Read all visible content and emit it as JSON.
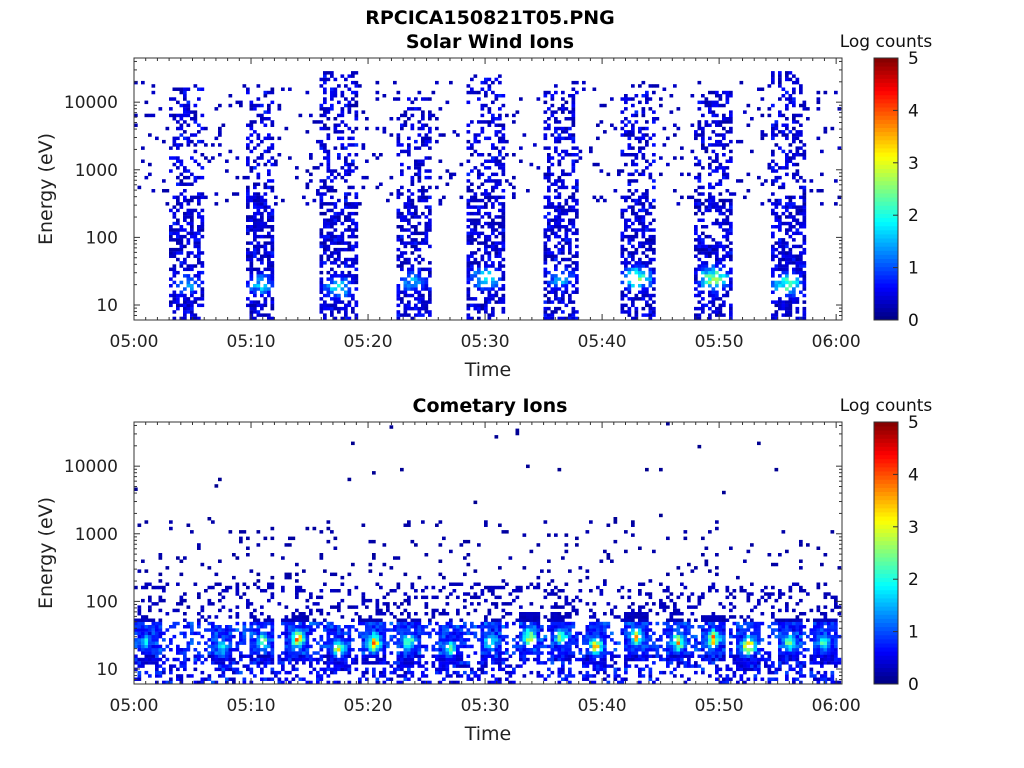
{
  "figure": {
    "file_title": "RPCICA150821T05.PNG"
  },
  "chart_data": [
    {
      "type": "heatmap",
      "title": "Solar Wind Ions",
      "xlabel": "Time",
      "ylabel": "Energy (eV)",
      "x_ticks": [
        "05:00",
        "05:10",
        "05:20",
        "05:30",
        "05:40",
        "05:50",
        "06:00"
      ],
      "x_range_minutes": [
        0,
        60.5
      ],
      "y_scale": "log",
      "y_ticks": [
        10,
        100,
        1000,
        10000
      ],
      "y_tick_labels": [
        "10",
        "100",
        "1000",
        "10000"
      ],
      "y_range": [
        6,
        45000
      ],
      "colorbar": {
        "label": "Log counts",
        "range": [
          0,
          5
        ],
        "ticks": [
          "0",
          "1",
          "2",
          "3",
          "4",
          "5"
        ],
        "colormap": "jet"
      },
      "bursts": [
        {
          "center_min": 4.5,
          "width_min": 2.8,
          "peak_log": 1.6,
          "peak_energy_ev": 20,
          "top_energy_ev": 18000
        },
        {
          "center_min": 10.8,
          "width_min": 2.6,
          "peak_log": 1.8,
          "peak_energy_ev": 20,
          "top_energy_ev": 16000
        },
        {
          "center_min": 17.5,
          "width_min": 3.0,
          "peak_log": 2.0,
          "peak_energy_ev": 18,
          "top_energy_ev": 30000
        },
        {
          "center_min": 23.8,
          "width_min": 3.0,
          "peak_log": 1.5,
          "peak_energy_ev": 22,
          "top_energy_ev": 12000
        },
        {
          "center_min": 30.0,
          "width_min": 3.2,
          "peak_log": 2.0,
          "peak_energy_ev": 25,
          "top_energy_ev": 25000
        },
        {
          "center_min": 36.5,
          "width_min": 3.0,
          "peak_log": 1.6,
          "peak_energy_ev": 25,
          "top_energy_ev": 14000
        },
        {
          "center_min": 43.0,
          "width_min": 3.0,
          "peak_log": 2.6,
          "peak_energy_ev": 25,
          "top_energy_ev": 15000
        },
        {
          "center_min": 49.5,
          "width_min": 3.0,
          "peak_log": 2.8,
          "peak_energy_ev": 25,
          "top_energy_ev": 14000
        },
        {
          "center_min": 55.8,
          "width_min": 3.0,
          "peak_log": 2.4,
          "peak_energy_ev": 20,
          "top_energy_ev": 30000
        }
      ]
    },
    {
      "type": "heatmap",
      "title": "Cometary Ions",
      "xlabel": "Time",
      "ylabel": "Energy (eV)",
      "x_ticks": [
        "05:00",
        "05:10",
        "05:20",
        "05:30",
        "05:40",
        "05:50",
        "06:00"
      ],
      "x_range_minutes": [
        0,
        60.5
      ],
      "y_scale": "log",
      "y_ticks": [
        10,
        100,
        1000,
        10000
      ],
      "y_tick_labels": [
        "10",
        "100",
        "1000",
        "10000"
      ],
      "y_range": [
        6,
        45000
      ],
      "colorbar": {
        "label": "Log counts",
        "range": [
          0,
          5
        ],
        "ticks": [
          "0",
          "1",
          "2",
          "3",
          "4",
          "5"
        ],
        "colormap": "jet"
      },
      "hotspots": [
        {
          "center_min": 1.0,
          "peak_log": 2.0,
          "energy_ev": 25
        },
        {
          "center_min": 7.5,
          "peak_log": 2.2,
          "energy_ev": 20
        },
        {
          "center_min": 11.0,
          "peak_log": 2.8,
          "energy_ev": 25
        },
        {
          "center_min": 14.0,
          "peak_log": 3.8,
          "energy_ev": 28
        },
        {
          "center_min": 17.5,
          "peak_log": 3.2,
          "energy_ev": 20
        },
        {
          "center_min": 20.5,
          "peak_log": 3.8,
          "energy_ev": 25
        },
        {
          "center_min": 23.5,
          "peak_log": 2.8,
          "energy_ev": 25
        },
        {
          "center_min": 27.0,
          "peak_log": 2.4,
          "energy_ev": 20
        },
        {
          "center_min": 30.5,
          "peak_log": 2.8,
          "energy_ev": 25
        },
        {
          "center_min": 33.8,
          "peak_log": 3.4,
          "energy_ev": 30
        },
        {
          "center_min": 36.5,
          "peak_log": 2.8,
          "energy_ev": 30
        },
        {
          "center_min": 39.5,
          "peak_log": 3.6,
          "energy_ev": 22
        },
        {
          "center_min": 43.0,
          "peak_log": 3.6,
          "energy_ev": 30
        },
        {
          "center_min": 46.5,
          "peak_log": 3.4,
          "energy_ev": 25
        },
        {
          "center_min": 49.5,
          "peak_log": 3.6,
          "energy_ev": 28
        },
        {
          "center_min": 52.5,
          "peak_log": 4.0,
          "energy_ev": 22
        },
        {
          "center_min": 56.0,
          "peak_log": 3.0,
          "energy_ev": 25
        },
        {
          "center_min": 59.0,
          "peak_log": 2.6,
          "energy_ev": 25
        }
      ]
    }
  ]
}
